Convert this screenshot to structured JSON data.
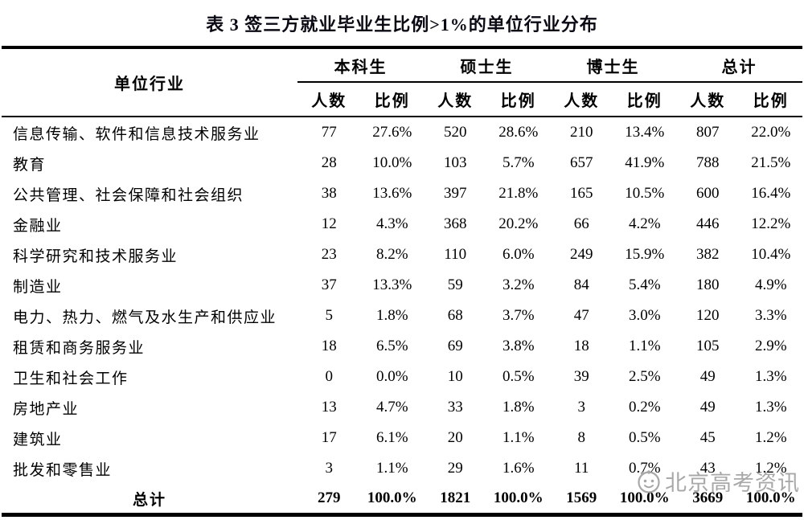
{
  "title": "表 3 签三方就业毕业生比例>1%的单位行业分布",
  "table": {
    "row_header": "单位行业",
    "groups": [
      {
        "label": "本科生"
      },
      {
        "label": "硕士生"
      },
      {
        "label": "博士生"
      },
      {
        "label": "总计"
      }
    ],
    "subheaders": {
      "count": "人数",
      "ratio": "比例"
    },
    "rows": [
      {
        "industry": "信息传输、软件和信息技术服务业",
        "cells": [
          "77",
          "27.6%",
          "520",
          "28.6%",
          "210",
          "13.4%",
          "807",
          "22.0%"
        ]
      },
      {
        "industry": "教育",
        "cells": [
          "28",
          "10.0%",
          "103",
          "5.7%",
          "657",
          "41.9%",
          "788",
          "21.5%"
        ]
      },
      {
        "industry": "公共管理、社会保障和社会组织",
        "cells": [
          "38",
          "13.6%",
          "397",
          "21.8%",
          "165",
          "10.5%",
          "600",
          "16.4%"
        ]
      },
      {
        "industry": "金融业",
        "cells": [
          "12",
          "4.3%",
          "368",
          "20.2%",
          "66",
          "4.2%",
          "446",
          "12.2%"
        ]
      },
      {
        "industry": "科学研究和技术服务业",
        "cells": [
          "23",
          "8.2%",
          "110",
          "6.0%",
          "249",
          "15.9%",
          "382",
          "10.4%"
        ]
      },
      {
        "industry": "制造业",
        "cells": [
          "37",
          "13.3%",
          "59",
          "3.2%",
          "84",
          "5.4%",
          "180",
          "4.9%"
        ]
      },
      {
        "industry": "电力、热力、燃气及水生产和供应业",
        "cells": [
          "5",
          "1.8%",
          "68",
          "3.7%",
          "47",
          "3.0%",
          "120",
          "3.3%"
        ]
      },
      {
        "industry": "租赁和商务服务业",
        "cells": [
          "18",
          "6.5%",
          "69",
          "3.8%",
          "18",
          "1.1%",
          "105",
          "2.9%"
        ]
      },
      {
        "industry": "卫生和社会工作",
        "cells": [
          "0",
          "0.0%",
          "10",
          "0.5%",
          "39",
          "2.5%",
          "49",
          "1.3%"
        ]
      },
      {
        "industry": "房地产业",
        "cells": [
          "13",
          "4.7%",
          "33",
          "1.8%",
          "3",
          "0.2%",
          "49",
          "1.3%"
        ]
      },
      {
        "industry": "建筑业",
        "cells": [
          "17",
          "6.1%",
          "20",
          "1.1%",
          "8",
          "0.5%",
          "45",
          "1.2%"
        ]
      },
      {
        "industry": "批发和零售业",
        "cells": [
          "3",
          "1.1%",
          "29",
          "1.6%",
          "11",
          "0.7%",
          "43",
          "1.2%"
        ]
      }
    ],
    "total": {
      "label": "总计",
      "cells": [
        "279",
        "100.0%",
        "1821",
        "100.0%",
        "1569",
        "100.0%",
        "3669",
        "100.0%"
      ]
    }
  },
  "watermark": {
    "text": "北京高考资讯"
  },
  "colors": {
    "text": "#000000",
    "border": "#000000",
    "watermark": "#9a9a9a",
    "background": "#ffffff"
  }
}
